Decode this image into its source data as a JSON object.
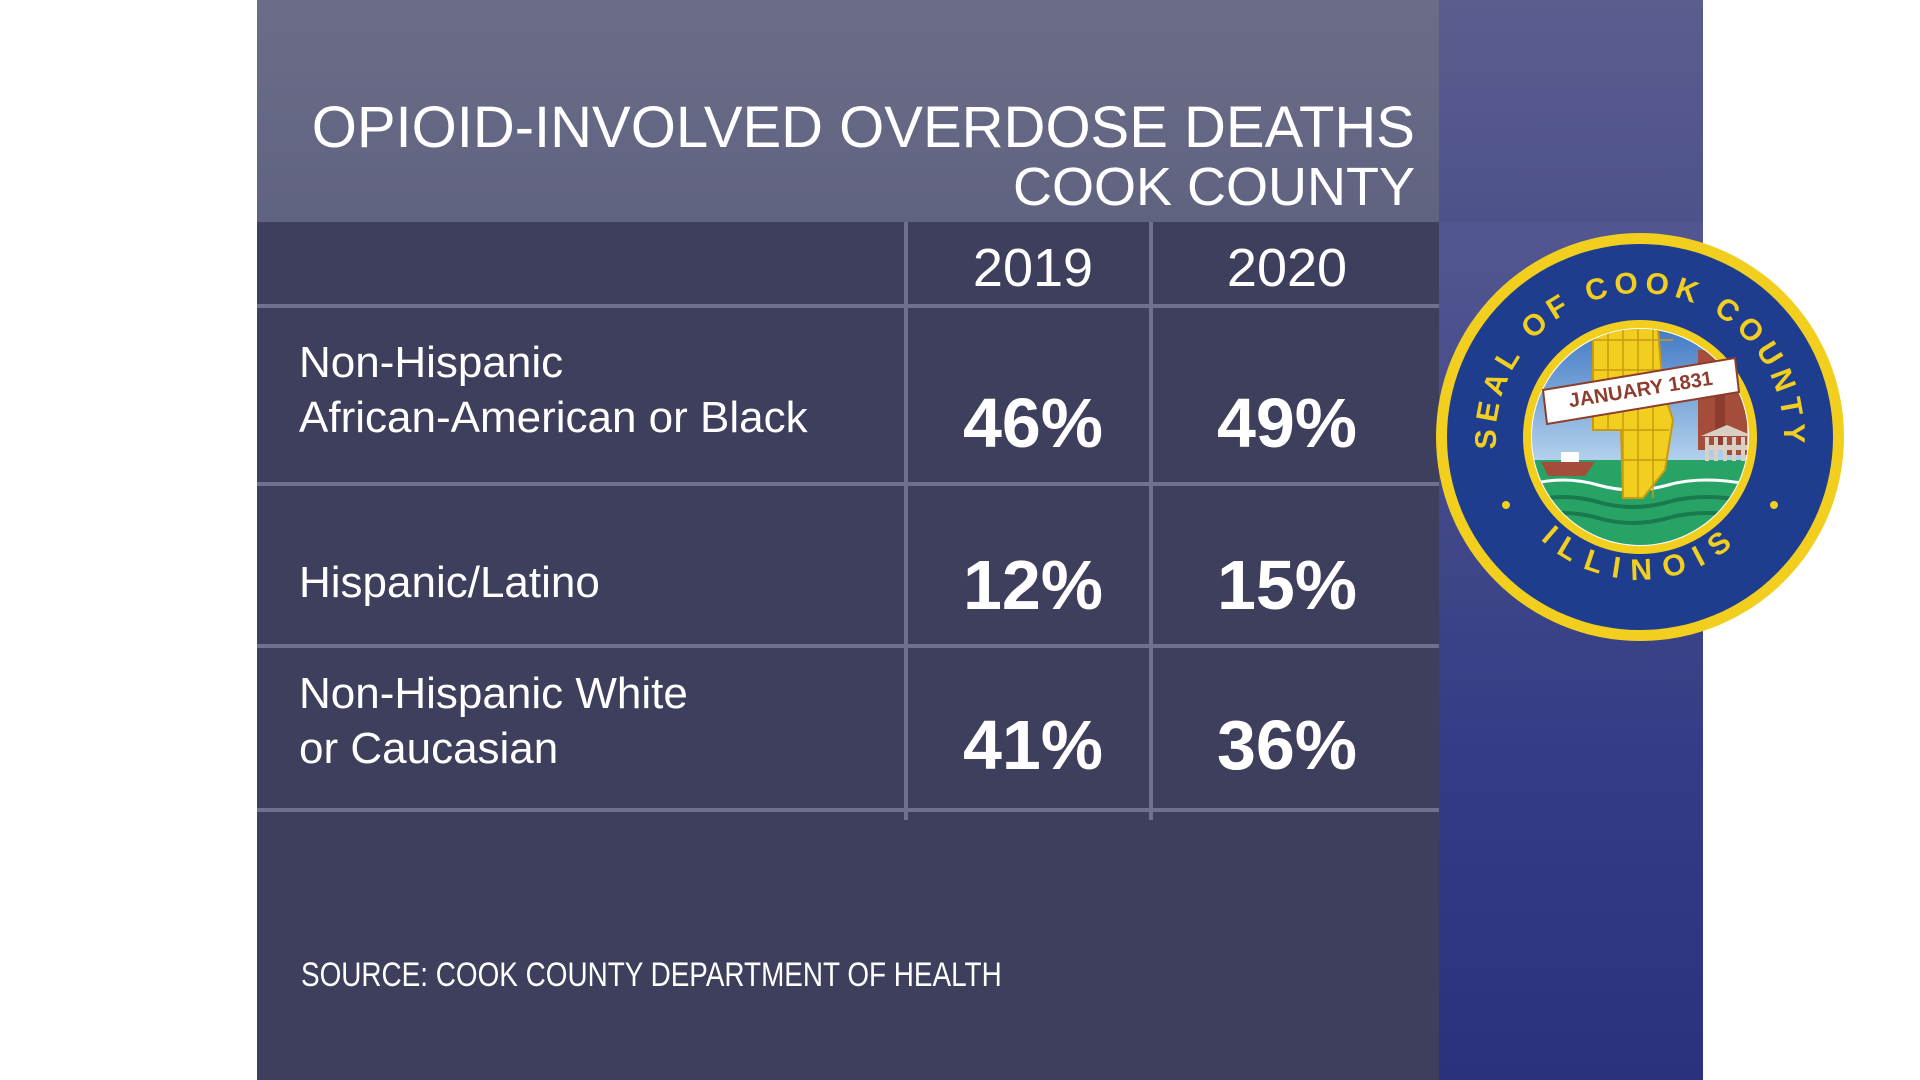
{
  "title": "OPIOID-INVOLVED OVERDOSE DEATHS",
  "subtitle": "COOK COUNTY",
  "source": "SOURCE: COOK COUNTY DEPARTMENT OF HEALTH",
  "colors": {
    "panel": "#3d3f5c",
    "header": "#656884",
    "sidebar": "#3a428a",
    "grid": "#6e7190",
    "text": "#ffffff",
    "seal_gold": "#f2cf1f",
    "seal_blue": "#1e3d8f"
  },
  "chart_data": {
    "type": "table",
    "title": "OPIOID-INVOLVED OVERDOSE DEATHS",
    "subtitle": "COOK COUNTY",
    "columns": [
      "2019",
      "2020"
    ],
    "rows": [
      {
        "label_lines": [
          "Non-Hispanic",
          "African-American or Black"
        ],
        "values": [
          "46%",
          "49%"
        ]
      },
      {
        "label_lines": [
          "Hispanic/Latino"
        ],
        "values": [
          "12%",
          "15%"
        ]
      },
      {
        "label_lines": [
          "Non-Hispanic White",
          "or Caucasian"
        ],
        "values": [
          "41%",
          "36%"
        ]
      }
    ]
  },
  "seal": {
    "icon": "cook-county-seal",
    "ring_text_top": "SEAL OF COOK COUNTY",
    "ring_text_bottom": "ILLINOIS",
    "banner": "JANUARY 1831"
  }
}
